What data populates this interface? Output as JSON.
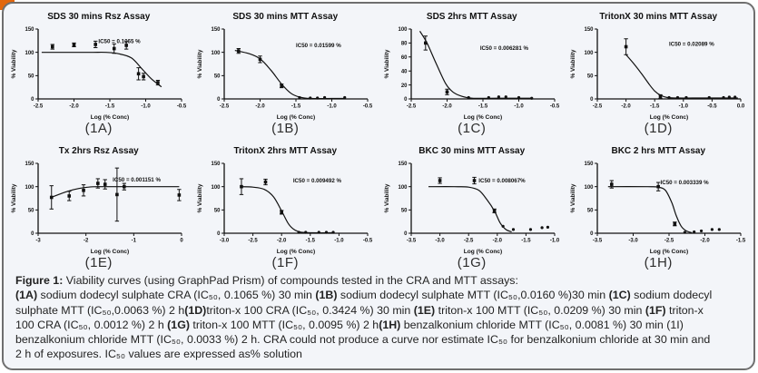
{
  "card": {
    "background": "#f3f5f9",
    "border_color": "#6f6f6f",
    "corner_accent_color": "#e2670e",
    "ink_color": "#111111"
  },
  "caption": {
    "lines": [
      [
        {
          "t": "Figure 1:",
          "b": true
        },
        {
          "t": " Viability curves (using GraphPad Prism) of compounds tested in the CRA and MTT assays:",
          "b": false
        }
      ],
      [
        {
          "t": "(1A)",
          "b": true
        },
        {
          "t": " sodium dodecyl sulphate CRA (IC₅₀, 0.1065 %) 30 min ",
          "b": false
        },
        {
          "t": "(1B)",
          "b": true
        },
        {
          "t": " sodium dodecyl sulphate MTT (IC₅₀,0.0160 %)30 min ",
          "b": false
        },
        {
          "t": "(1C)",
          "b": true
        },
        {
          "t": " sodium dodecyl",
          "b": false
        }
      ],
      [
        {
          "t": "sulphate MTT (IC₅₀,0.0063 %) 2 h",
          "b": false
        },
        {
          "t": "(1D)",
          "b": true
        },
        {
          "t": "triton-x 100 CRA (IC₅₀, 0.3424 %) 30 min ",
          "b": false
        },
        {
          "t": "(1E)",
          "b": true
        },
        {
          "t": " triton-x 100 MTT (IC₅₀, 0.0209 %) 30 min  ",
          "b": false
        },
        {
          "t": "(1F)",
          "b": true
        },
        {
          "t": " triton-x",
          "b": false
        }
      ],
      [
        {
          "t": "100 CRA (IC₅₀, 0.0012 %) 2 h  ",
          "b": false
        },
        {
          "t": "(1G)",
          "b": true
        },
        {
          "t": " triton-x 100 MTT (IC₅₀, 0.0095 %) 2 h",
          "b": false
        },
        {
          "t": "(1H)",
          "b": true
        },
        {
          "t": " benzalkonium chloride MTT (IC₅₀, 0.0081 %) 30 min  (1I)",
          "b": false
        }
      ],
      [
        {
          "t": "benzalkonium chloride MTT (IC₅₀, 0.0033 %) 2 h.  CRA could not produce a curve nor estimate IC₅₀ for benzalkonium chloride at 30 min and",
          "b": false
        }
      ],
      [
        {
          "t": "2 h of exposures. IC₅₀ values are expressed as% solution",
          "b": false
        }
      ]
    ]
  },
  "chart_data": [
    {
      "id": "1A",
      "type": "scatter",
      "title": "SDS 30 mins Rsz Assay",
      "sub_label": "(1A)",
      "annotation": "IC50 = 0.1065 %",
      "ann_pos": [
        0.42,
        0.2
      ],
      "xlabel": "Log (% Conc)",
      "ylabel": "% Viability",
      "xlim": [
        -2.5,
        -0.5
      ],
      "ylim": [
        0,
        150
      ],
      "xticks": [
        -2.5,
        -2.0,
        -1.5,
        -1.0,
        -0.5
      ],
      "xtick_labels": [
        "-2.5",
        "-2.0",
        "-1.5",
        "-1.0",
        "-0.5"
      ],
      "yticks": [
        0,
        50,
        100,
        150
      ],
      "ytick_labels": [
        "0",
        "50",
        "100",
        "150"
      ],
      "points": [
        [
          -2.3,
          112,
          5
        ],
        [
          -2.0,
          116,
          4
        ],
        [
          -1.7,
          117,
          7
        ],
        [
          -1.44,
          108,
          10
        ],
        [
          -1.27,
          115,
          8
        ],
        [
          -1.1,
          54,
          13
        ],
        [
          -1.03,
          48,
          7
        ],
        [
          -0.83,
          35,
          5
        ]
      ],
      "curve": [
        [
          -2.45,
          100
        ],
        [
          -1.8,
          100
        ],
        [
          -1.55,
          100
        ],
        [
          -1.38,
          97
        ],
        [
          -1.2,
          88
        ],
        [
          -1.05,
          64
        ],
        [
          -0.92,
          43
        ],
        [
          -0.78,
          26
        ]
      ]
    },
    {
      "id": "1B",
      "type": "scatter",
      "title": "SDS 30 mins MTT Assay",
      "sub_label": "(1B)",
      "annotation": "IC50 = 0.01599 %",
      "ann_pos": [
        0.5,
        0.26
      ],
      "xlabel": "Log (% Conc)",
      "ylabel": "% Viability",
      "xlim": [
        -2.5,
        -0.5
      ],
      "ylim": [
        0,
        150
      ],
      "xticks": [
        -2.5,
        -2.0,
        -1.5,
        -1.0,
        -0.5
      ],
      "xtick_labels": [
        "-2.5",
        "-2.0",
        "-1.5",
        "-1.0",
        "-0.5"
      ],
      "yticks": [
        0,
        50,
        100,
        150
      ],
      "ytick_labels": [
        "0",
        "50",
        "100",
        "150"
      ],
      "points": [
        [
          -2.3,
          103,
          5
        ],
        [
          -2.0,
          85,
          7
        ],
        [
          -1.7,
          28,
          4
        ],
        [
          -1.45,
          3,
          0
        ],
        [
          -1.3,
          2,
          0
        ],
        [
          -1.2,
          2,
          0
        ],
        [
          -1.1,
          3,
          0
        ],
        [
          -0.82,
          3,
          0
        ]
      ],
      "curve": [
        [
          -2.35,
          104
        ],
        [
          -2.15,
          97
        ],
        [
          -2.0,
          86
        ],
        [
          -1.85,
          62
        ],
        [
          -1.7,
          32
        ],
        [
          -1.57,
          12
        ],
        [
          -1.45,
          4
        ],
        [
          -1.3,
          1
        ],
        [
          -1.0,
          1
        ],
        [
          -0.82,
          1
        ]
      ]
    },
    {
      "id": "1C",
      "type": "scatter",
      "title": "SDS 2hrs MTT Assay",
      "sub_label": "(1C)",
      "annotation": "IC50 = 0.006281 %",
      "ann_pos": [
        0.48,
        0.3
      ],
      "xlabel": "Log (% Conc)",
      "ylabel": "% Viability",
      "xlim": [
        -2.5,
        -0.5
      ],
      "ylim": [
        0,
        100
      ],
      "xticks": [
        -2.5,
        -2.0,
        -1.5,
        -1.0,
        -0.5
      ],
      "xtick_labels": [
        "-2.5",
        "-2.0",
        "-1.5",
        "-1.0",
        "-0.5"
      ],
      "yticks": [
        0,
        20,
        40,
        60,
        80,
        100
      ],
      "ytick_labels": [
        "0",
        "20",
        "40",
        "60",
        "80",
        "100"
      ],
      "points": [
        [
          -2.3,
          80,
          10
        ],
        [
          -2.0,
          10,
          4
        ],
        [
          -1.7,
          2,
          0
        ],
        [
          -1.42,
          2,
          0
        ],
        [
          -1.28,
          3,
          0
        ],
        [
          -1.18,
          3,
          0
        ],
        [
          -1.0,
          2,
          0
        ],
        [
          -0.82,
          1,
          0
        ]
      ],
      "curve": [
        [
          -2.38,
          97
        ],
        [
          -2.28,
          80
        ],
        [
          -2.15,
          50
        ],
        [
          -2.02,
          22
        ],
        [
          -1.92,
          10
        ],
        [
          -1.8,
          4
        ],
        [
          -1.65,
          1
        ],
        [
          -1.3,
          1
        ],
        [
          -0.82,
          1
        ]
      ]
    },
    {
      "id": "1D",
      "type": "scatter",
      "title": "TritonX 30 mins MTT Assay",
      "sub_label": "(1D)",
      "annotation": "IC50 = 0.02089 %",
      "ann_pos": [
        0.5,
        0.24
      ],
      "xlabel": "Log (% Conc)",
      "ylabel": "% Viability",
      "xlim": [
        -2.5,
        0.0
      ],
      "ylim": [
        0,
        150
      ],
      "xticks": [
        -2.5,
        -2.0,
        -1.5,
        -1.0,
        -0.5,
        0.0
      ],
      "xtick_labels": [
        "-2.5",
        "-2.0",
        "-1.5",
        "-1.0",
        "-0.5",
        "0.0"
      ],
      "yticks": [
        0,
        50,
        100,
        150
      ],
      "ytick_labels": [
        "0",
        "50",
        "100",
        "150"
      ],
      "points": [
        [
          -2.0,
          112,
          17
        ],
        [
          -1.4,
          5,
          4
        ],
        [
          -1.25,
          3,
          0
        ],
        [
          -1.1,
          3,
          0
        ],
        [
          -0.95,
          3,
          0
        ],
        [
          -0.55,
          3,
          0
        ],
        [
          -0.3,
          3,
          0
        ],
        [
          -0.2,
          4,
          0
        ],
        [
          -0.1,
          4,
          0
        ]
      ],
      "curve": [
        [
          -2.0,
          95
        ],
        [
          -1.88,
          78
        ],
        [
          -1.74,
          56
        ],
        [
          -1.6,
          32
        ],
        [
          -1.5,
          17
        ],
        [
          -1.4,
          8
        ],
        [
          -1.28,
          3
        ],
        [
          -1.1,
          2
        ],
        [
          -0.6,
          2
        ],
        [
          -0.05,
          2
        ]
      ]
    },
    {
      "id": "1E",
      "type": "scatter",
      "title": "Tx 2hrs Rsz Assay",
      "sub_label": "(1E)",
      "annotation": "IC50 = 0.001151 %",
      "ann_pos": [
        0.52,
        0.26
      ],
      "xlabel": "Log (% Conc)",
      "ylabel": "% Viability",
      "xlim": [
        -3,
        0
      ],
      "ylim": [
        0,
        150
      ],
      "xticks": [
        -3,
        -2,
        -1,
        0
      ],
      "xtick_labels": [
        "-3",
        "-2",
        "-1",
        "0"
      ],
      "yticks": [
        0,
        50,
        100,
        150
      ],
      "ytick_labels": [
        "0",
        "50",
        "100",
        "150"
      ],
      "points": [
        [
          -2.72,
          77,
          25
        ],
        [
          -2.35,
          80,
          10
        ],
        [
          -2.05,
          92,
          12
        ],
        [
          -1.75,
          107,
          10
        ],
        [
          -1.6,
          105,
          10
        ],
        [
          -1.35,
          83,
          57
        ],
        [
          -1.2,
          100,
          7
        ],
        [
          -0.05,
          82,
          12
        ]
      ],
      "curve": [
        [
          -2.75,
          76
        ],
        [
          -2.55,
          84
        ],
        [
          -2.35,
          91
        ],
        [
          -2.15,
          96
        ],
        [
          -1.95,
          99
        ],
        [
          -1.75,
          100
        ],
        [
          -1.0,
          100
        ],
        [
          -0.05,
          100
        ]
      ]
    },
    {
      "id": "1F",
      "type": "scatter",
      "title": "TritonX 2hrs MTT Assay",
      "sub_label": "(1F)",
      "annotation": "IC50 = 0.009492 %",
      "ann_pos": [
        0.48,
        0.27
      ],
      "xlabel": "Log (% Conc)",
      "ylabel": "% Viability",
      "xlim": [
        -3.0,
        -0.5
      ],
      "ylim": [
        0,
        150
      ],
      "xticks": [
        -3.0,
        -2.5,
        -2.0,
        -1.5,
        -1.0,
        -0.5
      ],
      "xtick_labels": [
        "-3.0",
        "-2.5",
        "-2.0",
        "-1.5",
        "-1.0",
        "-0.5"
      ],
      "yticks": [
        0,
        50,
        100,
        150
      ],
      "ytick_labels": [
        "0",
        "50",
        "100",
        "150"
      ],
      "points": [
        [
          -2.7,
          100,
          17
        ],
        [
          -2.28,
          110,
          6
        ],
        [
          -2.0,
          45,
          4
        ],
        [
          -1.7,
          2,
          0
        ],
        [
          -1.58,
          2,
          0
        ],
        [
          -1.35,
          2,
          0
        ],
        [
          -1.22,
          2,
          0
        ],
        [
          -1.1,
          2,
          0
        ]
      ],
      "curve": [
        [
          -2.72,
          100
        ],
        [
          -2.5,
          99
        ],
        [
          -2.3,
          94
        ],
        [
          -2.14,
          78
        ],
        [
          -2.0,
          48
        ],
        [
          -1.88,
          20
        ],
        [
          -1.77,
          7
        ],
        [
          -1.65,
          2
        ],
        [
          -1.45,
          1
        ],
        [
          -1.1,
          1
        ]
      ]
    },
    {
      "id": "1G",
      "type": "scatter",
      "title": "BKC 30 mins MTT Assay",
      "sub_label": "(1G)",
      "annotation": "IC50 = 0.008067%",
      "ann_pos": [
        0.47,
        0.27
      ],
      "xlabel": "Log (% Conc)",
      "ylabel": "% Viability",
      "xlim": [
        -3.5,
        -1.0
      ],
      "ylim": [
        0,
        150
      ],
      "xticks": [
        -3.5,
        -3.0,
        -2.5,
        -2.0,
        -1.5,
        -1.0
      ],
      "xtick_labels": [
        "-3.5",
        "-3.0",
        "-2.5",
        "-2.0",
        "-1.5",
        "-1.0"
      ],
      "yticks": [
        0,
        50,
        100,
        150
      ],
      "ytick_labels": [
        "0",
        "50",
        "100",
        "150"
      ],
      "points": [
        [
          -3.0,
          113,
          6
        ],
        [
          -2.4,
          113,
          7
        ],
        [
          -2.05,
          48,
          4
        ],
        [
          -1.9,
          15,
          0
        ],
        [
          -1.72,
          8,
          0
        ],
        [
          -1.42,
          8,
          0
        ],
        [
          -1.22,
          12,
          0
        ],
        [
          -1.12,
          13,
          0
        ]
      ],
      "curve": [
        [
          -3.2,
          100
        ],
        [
          -2.75,
          100
        ],
        [
          -2.5,
          99
        ],
        [
          -2.32,
          92
        ],
        [
          -2.18,
          72
        ],
        [
          -2.05,
          48
        ],
        [
          -1.95,
          22
        ],
        [
          -1.85,
          8
        ],
        [
          -1.75,
          3
        ]
      ]
    },
    {
      "id": "1H",
      "type": "scatter",
      "title": "BKC 2 hrs MTT Assay",
      "sub_label": "(1H)",
      "annotation": "IC50 = 0.003339 %",
      "ann_pos": [
        0.44,
        0.3
      ],
      "xlabel": "Log (% Conc)",
      "ylabel": "% Viability",
      "xlim": [
        -3.5,
        -1.5
      ],
      "ylim": [
        0,
        150
      ],
      "xticks": [
        -3.5,
        -3.0,
        -2.5,
        -2.0,
        -1.5
      ],
      "xtick_labels": [
        "-3.5",
        "-3.0",
        "-2.5",
        "-2.0",
        "-1.5"
      ],
      "yticks": [
        0,
        50,
        100,
        150
      ],
      "ytick_labels": [
        "0",
        "50",
        "100",
        "150"
      ],
      "points": [
        [
          -3.3,
          105,
          8
        ],
        [
          -2.65,
          100,
          9
        ],
        [
          -2.42,
          20,
          4
        ],
        [
          -2.28,
          2,
          0
        ],
        [
          -2.15,
          3,
          0
        ],
        [
          -2.05,
          5,
          0
        ],
        [
          -1.9,
          8,
          0
        ],
        [
          -1.8,
          8,
          0
        ]
      ],
      "curve": [
        [
          -3.35,
          100
        ],
        [
          -2.8,
          100
        ],
        [
          -2.65,
          99
        ],
        [
          -2.55,
          92
        ],
        [
          -2.46,
          65
        ],
        [
          -2.4,
          38
        ],
        [
          -2.33,
          15
        ],
        [
          -2.26,
          5
        ],
        [
          -2.18,
          1
        ]
      ]
    }
  ]
}
